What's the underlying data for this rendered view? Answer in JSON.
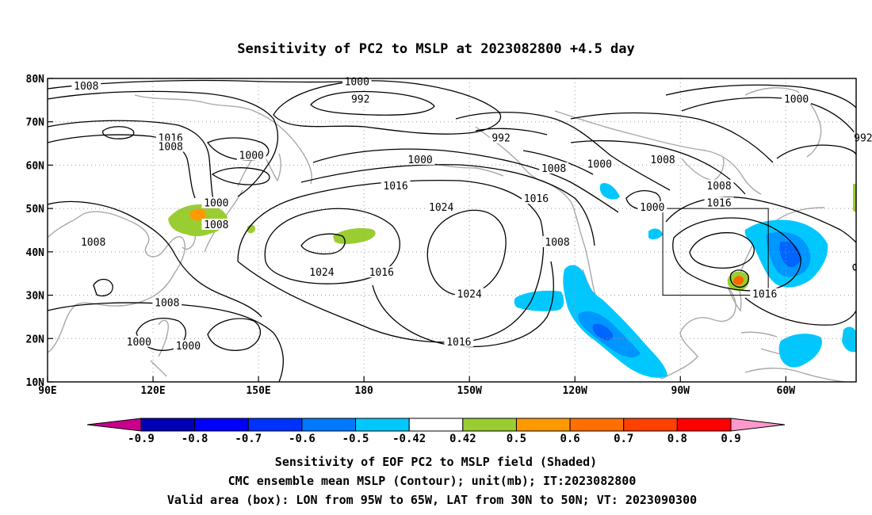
{
  "title": "Sensitivity of PC2 to MSLP at 2023082800 +4.5 day",
  "map": {
    "lon_ticks": [
      "90E",
      "120E",
      "150E",
      "180",
      "150W",
      "120W",
      "90W",
      "60W"
    ],
    "lat_ticks": [
      "10N",
      "20N",
      "30N",
      "40N",
      "50N",
      "60N",
      "70N",
      "80N"
    ],
    "contour_labels": [
      {
        "text": "1008",
        "lon": 101,
        "lat": 78
      },
      {
        "text": "1000",
        "lon": 178,
        "lat": 79
      },
      {
        "text": "992",
        "lon": 179,
        "lat": 75
      },
      {
        "text": "992",
        "lon": -141,
        "lat": 66
      },
      {
        "text": "1000",
        "lon": -57,
        "lat": 75
      },
      {
        "text": "992",
        "lon": -38,
        "lat": 66
      },
      {
        "text": "1016",
        "lon": 125,
        "lat": 66
      },
      {
        "text": "1008",
        "lon": 125,
        "lat": 64
      },
      {
        "text": "1000",
        "lon": 148,
        "lat": 62
      },
      {
        "text": "1000",
        "lon": -164,
        "lat": 61
      },
      {
        "text": "1008",
        "lon": -126,
        "lat": 59
      },
      {
        "text": "1000",
        "lon": -113,
        "lat": 60
      },
      {
        "text": "1008",
        "lon": -95,
        "lat": 61
      },
      {
        "text": "1016",
        "lon": -171,
        "lat": 55
      },
      {
        "text": "1000",
        "lon": 138,
        "lat": 51
      },
      {
        "text": "1008",
        "lon": 138,
        "lat": 46
      },
      {
        "text": "1024",
        "lon": -158,
        "lat": 50
      },
      {
        "text": "1016",
        "lon": -131,
        "lat": 52
      },
      {
        "text": "1000",
        "lon": -98,
        "lat": 50
      },
      {
        "text": "1008",
        "lon": -79,
        "lat": 55
      },
      {
        "text": "1016",
        "lon": -79,
        "lat": 51
      },
      {
        "text": "1008",
        "lon": 103,
        "lat": 42
      },
      {
        "text": "1024",
        "lon": 168,
        "lat": 35
      },
      {
        "text": "1016",
        "lon": -175,
        "lat": 35
      },
      {
        "text": "1008",
        "lon": -125,
        "lat": 42
      },
      {
        "text": "1024",
        "lon": -150,
        "lat": 30
      },
      {
        "text": "1008",
        "lon": 124,
        "lat": 28
      },
      {
        "text": "1016",
        "lon": -66,
        "lat": 30
      },
      {
        "text": "1000",
        "lon": 116,
        "lat": 19
      },
      {
        "text": "1000",
        "lon": 130,
        "lat": 18
      },
      {
        "text": "1016",
        "lon": -153,
        "lat": 19
      }
    ],
    "valid_box": {
      "lon_west": -95,
      "lon_east": -65,
      "lat_south": 30,
      "lat_north": 50
    },
    "shading_colors": {
      "pos_0.42": "#9acd32",
      "pos_0.5": "#ff9900",
      "pos_0.6": "#ff6600",
      "pos_0.7": "#ff3300",
      "pos_0.8": "#ff0000",
      "neg_0.42": "#00c8ff",
      "neg_0.5": "#0096ff",
      "neg_0.6": "#0064ff",
      "neg_0.7": "#0032ff",
      "neg_0.8": "#0000c8"
    }
  },
  "colorbar": {
    "labels": [
      "-0.9",
      "-0.8",
      "-0.7",
      "-0.6",
      "-0.5",
      "-0.42",
      "0.42",
      "0.5",
      "0.6",
      "0.7",
      "0.8",
      "0.9"
    ],
    "colors": [
      "#c8008c",
      "#0000b4",
      "#0000ff",
      "#0032ff",
      "#0078ff",
      "#00c8ff",
      "#ffffff",
      "#9acd32",
      "#ff9900",
      "#ff7000",
      "#ff4000",
      "#ff0000",
      "#ff99cc"
    ]
  },
  "captions": {
    "line1": "Sensitivity of EOF PC2 to MSLP field (Shaded)",
    "line2": "CMC ensemble mean MSLP (Contour); unit(mb); IT:2023082800",
    "line3": "Valid area (box): LON from 95W to 65W, LAT from 30N to 50N; VT: 2023090300"
  }
}
